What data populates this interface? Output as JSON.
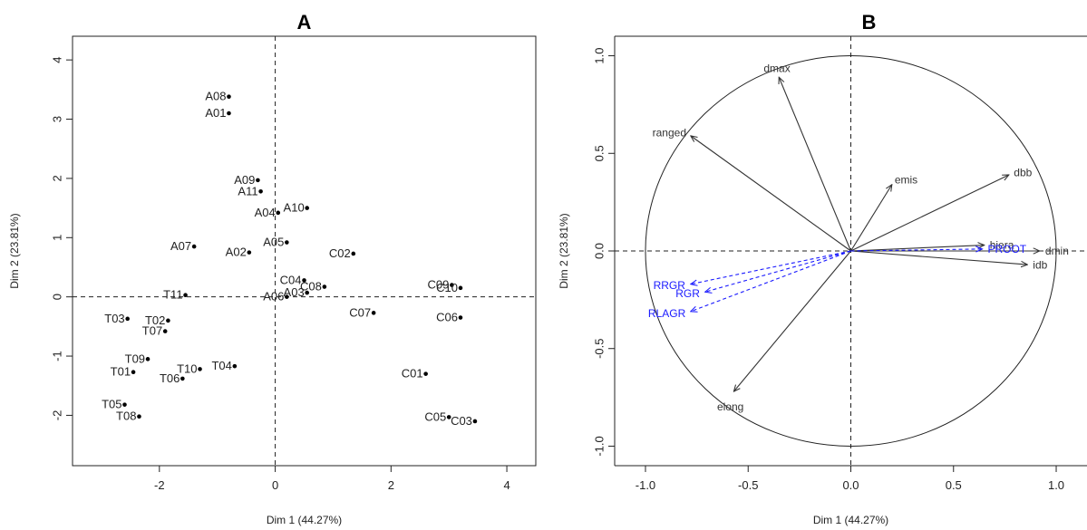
{
  "chart_data": [
    {
      "type": "scatter",
      "title": "A",
      "xlabel": "Dim 1 (44.27%)",
      "ylabel": "Dim 2 (23.81%)",
      "xlim": [
        -3.5,
        4.5
      ],
      "ylim": [
        -2.85,
        4.4
      ],
      "xticks": [
        -2,
        0,
        2,
        4
      ],
      "yticks": [
        -2,
        -1,
        0,
        1,
        2,
        3,
        4
      ],
      "ref_lines": {
        "x": 0,
        "y": 0
      },
      "points": [
        {
          "label": "A08",
          "x": -0.8,
          "y": 3.38
        },
        {
          "label": "A01",
          "x": -0.8,
          "y": 3.1
        },
        {
          "label": "A09",
          "x": -0.3,
          "y": 1.97
        },
        {
          "label": "A11",
          "x": -0.25,
          "y": 1.78
        },
        {
          "label": "A04",
          "x": 0.05,
          "y": 1.42
        },
        {
          "label": "A10",
          "x": 0.55,
          "y": 1.5
        },
        {
          "label": "A05",
          "x": 0.2,
          "y": 0.92
        },
        {
          "label": "A07",
          "x": -1.4,
          "y": 0.85
        },
        {
          "label": "A02",
          "x": -0.45,
          "y": 0.75
        },
        {
          "label": "C02",
          "x": 1.35,
          "y": 0.73
        },
        {
          "label": "C04",
          "x": 0.5,
          "y": 0.28
        },
        {
          "label": "C08",
          "x": 0.85,
          "y": 0.17
        },
        {
          "label": "A06",
          "x": 0.2,
          "y": 0.0
        },
        {
          "label": "A03",
          "x": 0.55,
          "y": 0.07
        },
        {
          "label": "C09",
          "x": 3.05,
          "y": 0.2
        },
        {
          "label": "C10",
          "x": 3.2,
          "y": 0.15
        },
        {
          "label": "T11",
          "x": -1.55,
          "y": 0.03
        },
        {
          "label": "C06",
          "x": 3.2,
          "y": -0.35
        },
        {
          "label": "C07",
          "x": 1.7,
          "y": -0.27
        },
        {
          "label": "T02",
          "x": -1.85,
          "y": -0.4
        },
        {
          "label": "T03",
          "x": -2.55,
          "y": -0.37
        },
        {
          "label": "T07",
          "x": -1.9,
          "y": -0.58
        },
        {
          "label": "T09",
          "x": -2.2,
          "y": -1.05
        },
        {
          "label": "T10",
          "x": -1.3,
          "y": -1.22
        },
        {
          "label": "T04",
          "x": -0.7,
          "y": -1.17
        },
        {
          "label": "T06",
          "x": -1.6,
          "y": -1.38
        },
        {
          "label": "T01",
          "x": -2.45,
          "y": -1.27
        },
        {
          "label": "C01",
          "x": 2.6,
          "y": -1.3
        },
        {
          "label": "T05",
          "x": -2.6,
          "y": -1.82
        },
        {
          "label": "T08",
          "x": -2.35,
          "y": -2.02
        },
        {
          "label": "C05",
          "x": 3.0,
          "y": -2.03
        },
        {
          "label": "C03",
          "x": 3.45,
          "y": -2.1
        }
      ]
    },
    {
      "type": "scatter",
      "title": "B",
      "xlabel": "Dim 1 (44.27%)",
      "ylabel": "Dim 2 (23.81%)",
      "xlim": [
        -1.15,
        1.15
      ],
      "ylim": [
        -1.1,
        1.1
      ],
      "xticks": [
        -1.0,
        -0.5,
        0.0,
        0.5,
        1.0
      ],
      "yticks": [
        -1.0,
        -0.5,
        0.0,
        0.5,
        1.0
      ],
      "tick_labels": [
        "-1.0",
        "-0.5",
        "0.0",
        "0.5",
        "1.0"
      ],
      "ref_lines": {
        "x": 0,
        "y": 0
      },
      "unit_circle": true,
      "colors": {
        "active": "#333333",
        "supplementary": "#1a1aff"
      },
      "vectors": [
        {
          "label": "dmax",
          "x": -0.35,
          "y": 0.89,
          "kind": "active"
        },
        {
          "label": "ranged",
          "x": -0.78,
          "y": 0.59,
          "kind": "active"
        },
        {
          "label": "emis",
          "x": 0.2,
          "y": 0.34,
          "kind": "active"
        },
        {
          "label": "dbb",
          "x": 0.77,
          "y": 0.39,
          "kind": "active"
        },
        {
          "label": "hiera",
          "x": 0.65,
          "y": 0.03,
          "kind": "active"
        },
        {
          "label": "dmin",
          "x": 0.92,
          "y": 0.0,
          "kind": "active"
        },
        {
          "label": "idb",
          "x": 0.86,
          "y": -0.07,
          "kind": "active"
        },
        {
          "label": "elong",
          "x": -0.57,
          "y": -0.72,
          "kind": "active"
        },
        {
          "label": "PROOT",
          "x": 0.64,
          "y": 0.01,
          "kind": "supplementary"
        },
        {
          "label": "RRGR",
          "x": -0.78,
          "y": -0.17,
          "kind": "supplementary"
        },
        {
          "label": "RGR",
          "x": -0.71,
          "y": -0.21,
          "kind": "supplementary"
        },
        {
          "label": "RLAGR",
          "x": -0.78,
          "y": -0.31,
          "kind": "supplementary"
        }
      ]
    }
  ]
}
